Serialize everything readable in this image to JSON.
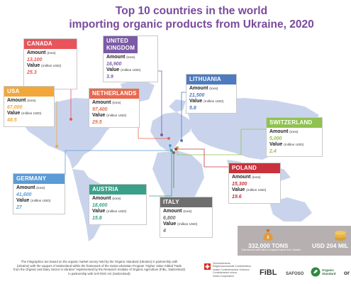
{
  "title": {
    "line1": "Top 10 countries in the world",
    "line2": "importing organic products from Ukraine, 2020"
  },
  "labels": {
    "amount": "Amount",
    "amount_unit": "(tons)",
    "value": "Value",
    "value_unit": "(million USD)"
  },
  "countries": [
    {
      "name": "CANADA",
      "amount": "13,100",
      "value": "25.3",
      "color": "#e8545a"
    },
    {
      "name": "UNITED KINGDOM",
      "amount": "16,900",
      "value": "3.9",
      "color": "#7b5aa6"
    },
    {
      "name": "LITHUANIA",
      "amount": "21,500",
      "value": "5.8",
      "color": "#4c7bbf"
    },
    {
      "name": "USA",
      "amount": "67,000",
      "value": "48.5",
      "color": "#f2a73b"
    },
    {
      "name": "NETHERLANDS",
      "amount": "97,400",
      "value": "29.5",
      "color": "#e8694e"
    },
    {
      "name": "SWITZERLAND",
      "amount": "5,000",
      "value": "2.4",
      "color": "#8fc24e"
    },
    {
      "name": "POLAND",
      "amount": "15,300",
      "value": "19.6",
      "color": "#c8323c"
    },
    {
      "name": "GERMANY",
      "amount": "41,600",
      "value": "27",
      "color": "#5b9bd5"
    },
    {
      "name": "AUSTRIA",
      "amount": "18,600",
      "value": "15.8",
      "color": "#3aa08a"
    },
    {
      "name": "ITALY",
      "amount": "6,800",
      "value": "4",
      "color": "#6e6e6e"
    }
  ],
  "totals": {
    "tons": "332,000 TONS",
    "usd": "USD 204 MIL",
    "caption": "Total amount and value of organic export from Ukraine"
  },
  "footer": {
    "line1": "The infographics are based on the organic market survey held by the Organic Standard (Ukraine) in partnership with",
    "line2": "(Ukraine) with the support of Switzerland within the framework of the Swiss-Ukrainian Program \"Higher Value Added Trade",
    "line3": "from the Organic and Dairy Sector in Ukraine\" implemented by the Research Institute of Organic Agriculture (FiBL, Switzerland)",
    "line4": "in partnership with SAFOSO AG (Switzerland)"
  },
  "logos": {
    "swiss": "Schweizerische Eidgenossenschaft Confédération suisse Confederazione Svizzera Confederaziun svizra",
    "swiss_sub": "Swiss Cooperation",
    "fibl": "FiBL",
    "safoso": "SAFOSO",
    "os1": "Organic",
    "os2": "Standard",
    "edge": "or"
  }
}
